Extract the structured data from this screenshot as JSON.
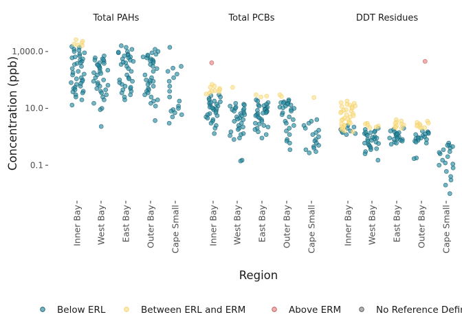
{
  "chart_data": {
    "type": "scatter",
    "subtype": "jittered strip plot, faceted by analyte group",
    "title": "",
    "xlabel": "Region",
    "ylabel": "Concentration (ppb)",
    "y_scale": "log10",
    "ylim": [
      0.007,
      7000
    ],
    "y_ticks": [
      0.1,
      10,
      1000
    ],
    "y_tick_labels": [
      "0.1",
      "10.0",
      "1,000.0"
    ],
    "grid": false,
    "legend_position": "bottom",
    "categories": [
      "Inner Bay",
      "West Bay",
      "East Bay",
      "Outer Bay",
      "Cape Small"
    ],
    "facets": [
      {
        "name": "Total PAHs",
        "groups": [
          {
            "region": "Inner Bay",
            "below": [
              1400,
              1200,
              1100,
              900,
              800,
              700,
              600,
              550,
              500,
              450,
              400,
              350,
              300,
              250,
              200,
              180,
              150,
              120,
              100,
              90,
              80,
              70,
              60,
              55,
              50,
              45,
              40,
              35,
              30,
              25,
              20,
              13,
              1500,
              1000,
              650,
              380,
              160,
              110,
              75,
              38
            ],
            "between": [
              2600,
              2300,
              2000,
              1800,
              1700,
              1600
            ]
          },
          {
            "region": "West Bay",
            "below": [
              700,
              600,
              550,
              500,
              450,
              400,
              380,
              350,
              300,
              280,
              250,
              220,
              200,
              180,
              150,
              120,
              100,
              90,
              80,
              70,
              60,
              50,
              45,
              40,
              35,
              30,
              25,
              20,
              15,
              10,
              9,
              2.3,
              520,
              330,
              170,
              65
            ]
          },
          {
            "region": "East Bay",
            "below": [
              1600,
              1400,
              1200,
              1000,
              900,
              800,
              750,
              700,
              650,
              600,
              550,
              500,
              450,
              400,
              350,
              300,
              250,
              200,
              150,
              120,
              100,
              90,
              80,
              70,
              60,
              50,
              45,
              40,
              35,
              30,
              25,
              20,
              950,
              420,
              110,
              55
            ]
          },
          {
            "region": "Outer Bay",
            "below": [
              1200,
              1000,
              900,
              800,
              700,
              650,
              600,
              550,
              500,
              450,
              400,
              350,
              300,
              250,
              200,
              150,
              120,
              100,
              90,
              80,
              70,
              60,
              50,
              45,
              40,
              35,
              30,
              25,
              20,
              18,
              15,
              12,
              3.7,
              750,
              480,
              95
            ]
          },
          {
            "region": "Cape Small",
            "below": [
              1400,
              300,
              260,
              200,
              160,
              120,
              90,
              60,
              40,
              25,
              18,
              12,
              10,
              9,
              8,
              7,
              6,
              5,
              3
            ]
          }
        ]
      },
      {
        "name": "Total PCBs",
        "groups": [
          {
            "region": "Inner Bay",
            "below": [
              30,
              28,
              25,
              22,
              20,
              18,
              17,
              15,
              14,
              13,
              12,
              11,
              10,
              9.5,
              9,
              8,
              7,
              6.5,
              6,
              5.5,
              5,
              4.5,
              4,
              3.5,
              3,
              2.5,
              2,
              1.3,
              16,
              10.5
            ],
            "between": [
              70,
              60,
              55,
              50,
              45,
              42,
              40,
              38,
              35,
              32
            ],
            "above": [
              400
            ]
          },
          {
            "region": "West Bay",
            "below": [
              15,
              14,
              13,
              12,
              11,
              10,
              9,
              8.5,
              8,
              7,
              6.5,
              6,
              5.5,
              5,
              4.5,
              4,
              3.5,
              3,
              2.5,
              2,
              1.8,
              1.5,
              1.3,
              1.2,
              1.1,
              0.9,
              0.8,
              0.15,
              0.14,
              9.5,
              4.2,
              2.2
            ],
            "between": [
              55
            ]
          },
          {
            "region": "East Bay",
            "below": [
              20,
              18,
              16,
              14,
              13,
              12,
              11,
              10,
              9.5,
              9,
              8.5,
              8,
              7.5,
              7,
              6.5,
              6,
              5.5,
              5,
              4.5,
              4,
              3.5,
              3,
              2.8,
              2.5,
              2.2,
              2,
              1.8,
              1.5,
              1.2,
              0.9,
              12.5,
              6.8
            ],
            "between": [
              30,
              27,
              25
            ]
          },
          {
            "region": "Outer Bay",
            "below": [
              20,
              18,
              17,
              16,
              15,
              14,
              13,
              12,
              11,
              10,
              9,
              8,
              7,
              6,
              5,
              4,
              3.5,
              3,
              2.5,
              2,
              1.6,
              1.2,
              0.8,
              0.7,
              0.6,
              0.35,
              15.5,
              10.5
            ],
            "between": [
              30,
              26
            ]
          },
          {
            "region": "Cape Small",
            "below": [
              4,
              3.5,
              3,
              2.5,
              2,
              1.7,
              1.4,
              1.2,
              1,
              0.8,
              0.7,
              0.6,
              0.5,
              0.45,
              0.4,
              0.35,
              0.3,
              0.27
            ],
            "between": [
              24
            ]
          }
        ]
      },
      {
        "name": "DDT Residues",
        "groups": [
          {
            "region": "Inner Bay",
            "below": [
              2.5,
              2.2,
              2,
              1.8,
              1.6,
              1.5,
              1.4,
              1.3,
              1.2
            ],
            "between": [
              18,
              16,
              15,
              14,
              13,
              12,
              11,
              10,
              9,
              8.5,
              8,
              7.5,
              7,
              6.5,
              6,
              5.5,
              5,
              4.5,
              4,
              3.8,
              3.5,
              3.2,
              3,
              2.8,
              2.6,
              2.4,
              2.2,
              2,
              1.8,
              1.6,
              1.5,
              11.5,
              4.2
            ]
          },
          {
            "region": "West Bay",
            "below": [
              2,
              1.8,
              1.6,
              1.5,
              1.4,
              1.3,
              1.2,
              1.1,
              1,
              0.9,
              0.85,
              0.8,
              0.75,
              0.7,
              0.65,
              0.6,
              0.55,
              0.5,
              0.45,
              0.4,
              0.35,
              0.3,
              0.25,
              0.15,
              1.45,
              0.95,
              0.58,
              0.38
            ],
            "between": [
              3,
              2.8,
              2.6,
              2.4,
              2.2,
              2.1
            ]
          },
          {
            "region": "East Bay",
            "below": [
              2,
              1.8,
              1.6,
              1.5,
              1.4,
              1.3,
              1.2,
              1.1,
              1,
              0.95,
              0.9,
              0.85,
              0.8,
              0.75,
              0.7,
              0.65,
              0.6,
              0.55,
              1.25,
              0.82
            ],
            "between": [
              4,
              3.6,
              3.3,
              3,
              2.8,
              2.6,
              2.4,
              2.2,
              2.1,
              2
            ]
          },
          {
            "region": "Outer Bay",
            "below": [
              1.6,
              1.5,
              1.4,
              1.3,
              1.2,
              1.1,
              1,
              0.95,
              0.9,
              0.85,
              0.8,
              0.75,
              0.7,
              0.65,
              0.6,
              0.18,
              0.17,
              1.25,
              0.88
            ],
            "between": [
              3.5,
              3.2,
              3,
              2.8,
              2.6,
              2.5,
              2.4,
              2.2,
              2.1,
              2
            ],
            "above": [
              450
            ]
          },
          {
            "region": "Cape Small",
            "below": [
              0.6,
              0.5,
              0.45,
              0.4,
              0.35,
              0.3,
              0.25,
              0.2,
              0.15,
              0.12,
              0.1,
              0.08,
              0.06,
              0.04,
              0.03,
              0.02,
              0.01,
              0.5,
              0.28,
              0.11
            ]
          }
        ]
      }
    ],
    "legend": [
      {
        "key": "below",
        "label": "Below ERL",
        "color": "#1b7f97"
      },
      {
        "key": "between",
        "label": "Between ERL and ERM",
        "color": "#f6d55c"
      },
      {
        "key": "above",
        "label": "Above ERM",
        "color": "#e05a5a"
      },
      {
        "key": "none",
        "label": "No Reference Defined",
        "color": "#7f7f7f"
      }
    ]
  },
  "styles": {
    "below_fill": "#2a8ea4",
    "below_stroke": "#0d5566",
    "between_fill": "#fbe090",
    "between_stroke": "#f2cd5e",
    "above_fill": "#e88585",
    "above_stroke": "#b94a4a",
    "none_fill": "#8c8c8c",
    "none_stroke": "#444444",
    "point_opacity": 0.55,
    "text_color": "#1a1a1a",
    "tick_color": "#4d4d4d"
  }
}
